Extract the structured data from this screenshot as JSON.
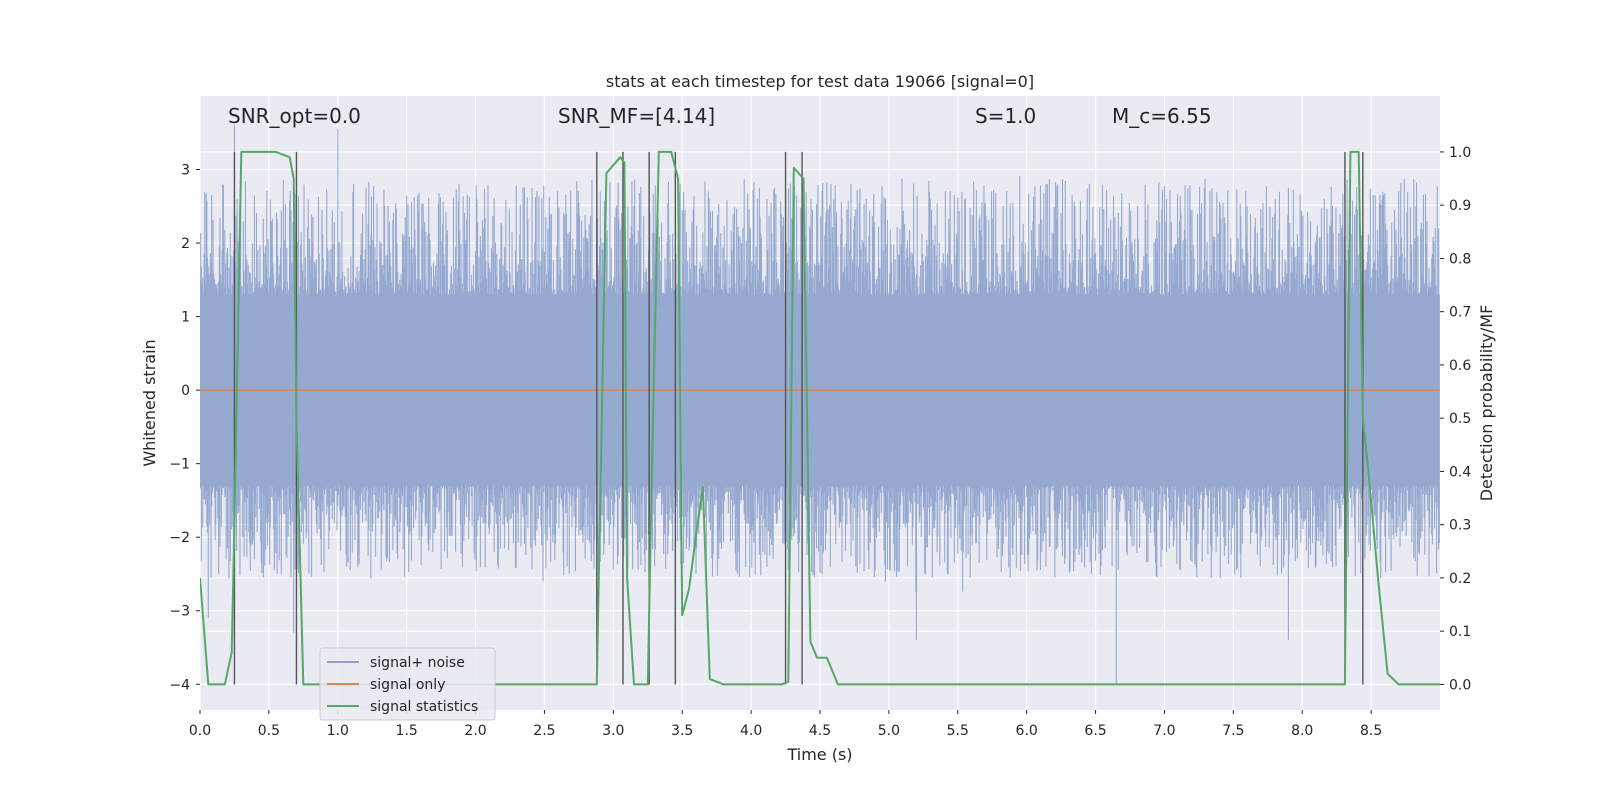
{
  "chart_data": {
    "type": "line",
    "title": "stats at each timestep for test data 19066 [signal=0]",
    "xlabel": "Time (s)",
    "ylabel_left": "Whitened strain",
    "ylabel_right": "Detection probability/MF",
    "xlim": [
      0.0,
      9.0
    ],
    "ylim_left": [
      -4.35,
      4.0
    ],
    "ylim_right": [
      -0.048,
      1.105
    ],
    "x_ticks": [
      "0.0",
      "0.5",
      "1.0",
      "1.5",
      "2.0",
      "2.5",
      "3.0",
      "3.5",
      "4.0",
      "4.5",
      "5.0",
      "5.5",
      "6.0",
      "6.5",
      "7.0",
      "7.5",
      "8.0",
      "8.5"
    ],
    "y_ticks_left": [
      "−4",
      "−3",
      "−2",
      "−1",
      "0",
      "1",
      "2",
      "3"
    ],
    "y_ticks_right": [
      "0.0",
      "0.1",
      "0.2",
      "0.3",
      "0.4",
      "0.5",
      "0.6",
      "0.7",
      "0.8",
      "0.9",
      "1.0"
    ],
    "grid": true,
    "annotations": {
      "snr_opt": "SNR_opt=0.0",
      "snr_mf": "SNR_MF=[4.14]",
      "s": "S=1.0",
      "mc": "M_c=6.55"
    },
    "legend": {
      "placement": "lower-left",
      "entries": [
        "signal+ noise",
        "signal only",
        "signal statistics"
      ]
    },
    "colors": {
      "noise": "#8da2cc",
      "signal_only": "#dd8452",
      "statistics": "#55a868",
      "marker_lines": "#555555",
      "background": "#eaeaf2"
    },
    "noise_series": {
      "name": "signal+ noise",
      "duration_s": 9.0,
      "typical_range": [
        -2.5,
        2.8
      ],
      "extremes": [
        [
          0.25,
          3.6
        ],
        [
          1.0,
          3.55
        ],
        [
          0.68,
          -3.3
        ],
        [
          0.06,
          -3.1
        ],
        [
          5.2,
          -3.4
        ],
        [
          6.65,
          -4.0
        ],
        [
          7.9,
          -3.4
        ]
      ]
    },
    "signal_only_series": {
      "name": "signal only",
      "x": [
        0.0,
        9.0
      ],
      "y": [
        0.0,
        0.0
      ]
    },
    "statistics_series": {
      "name": "signal statistics",
      "x": [
        0.0,
        0.06,
        0.18,
        0.23,
        0.25,
        0.3,
        0.55,
        0.65,
        0.68,
        0.7,
        0.75,
        2.85,
        2.88,
        2.95,
        3.05,
        3.08,
        3.1,
        3.15,
        3.25,
        3.28,
        3.33,
        3.42,
        3.47,
        3.5,
        3.55,
        3.6,
        3.65,
        3.7,
        3.8,
        4.22,
        4.27,
        4.31,
        4.38,
        4.43,
        4.48,
        4.55,
        4.63,
        8.25,
        8.31,
        8.35,
        8.41,
        8.44,
        8.48,
        8.55,
        8.62,
        8.7,
        9.0
      ],
      "y": [
        0.2,
        0.0,
        0.0,
        0.06,
        0.3,
        1.0,
        1.0,
        0.99,
        0.95,
        0.5,
        0.0,
        0.0,
        0.0,
        0.96,
        0.99,
        0.98,
        0.2,
        0.0,
        0.0,
        0.4,
        1.0,
        1.0,
        0.95,
        0.13,
        0.18,
        0.28,
        0.37,
        0.01,
        0.0,
        0.0,
        0.005,
        0.97,
        0.95,
        0.08,
        0.05,
        0.05,
        0.0,
        0.0,
        0.0,
        1.0,
        1.0,
        0.5,
        0.4,
        0.2,
        0.02,
        0.0,
        0.0
      ]
    },
    "marker_lines_x": [
      0.25,
      0.7,
      2.88,
      3.07,
      3.26,
      3.45,
      4.25,
      4.37,
      8.31,
      8.44
    ]
  }
}
